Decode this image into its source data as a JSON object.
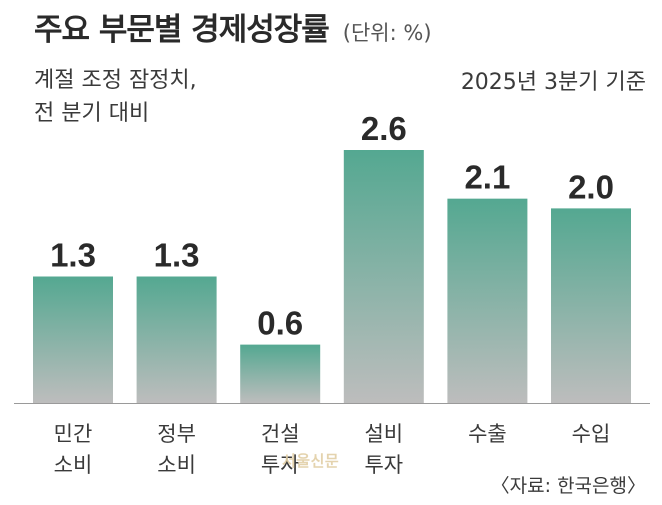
{
  "header": {
    "title": "주요 부문별 경제성장률",
    "unit": "(단위: %)",
    "subtitle": "계절 조정 잠정치,\n전 분기 대비",
    "basis": "2025년 3분기 기준"
  },
  "footer": {
    "source": "〈자료: 한국은행〉",
    "watermark": "서울신문"
  },
  "colors": {
    "bar_top": "#54a891",
    "bar_bottom": "#bdbdbd",
    "axis": "#9a9a9a",
    "text": "#2b2b2b"
  },
  "chart_data": {
    "type": "bar",
    "title": "주요 부문별 경제성장률",
    "unit": "%",
    "categories": [
      [
        "민간",
        "소비"
      ],
      [
        "정부",
        "소비"
      ],
      [
        "건설",
        "투자"
      ],
      [
        "설비",
        "투자"
      ],
      [
        "수출"
      ],
      [
        "수입"
      ]
    ],
    "values": [
      1.3,
      1.3,
      0.6,
      2.6,
      2.1,
      2.0
    ],
    "data_labels": [
      "1.3",
      "1.3",
      "0.6",
      "2.6",
      "2.1",
      "2.0"
    ],
    "ylim": [
      0,
      2.6
    ],
    "grid": false,
    "legend": "none"
  }
}
